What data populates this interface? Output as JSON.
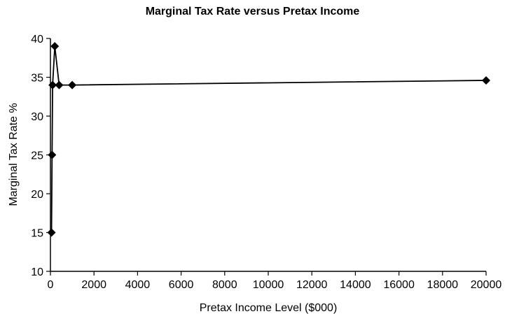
{
  "chart_data": {
    "type": "line",
    "title": "Marginal Tax Rate versus Pretax Income",
    "xlabel": "Pretax Income Level ($000)",
    "ylabel": "Marginal Tax Rate %",
    "xlim": [
      0,
      20000
    ],
    "ylim": [
      10,
      40
    ],
    "xticks": [
      0,
      2000,
      4000,
      6000,
      8000,
      10000,
      12000,
      14000,
      16000,
      18000,
      20000
    ],
    "yticks": [
      10,
      15,
      20,
      25,
      30,
      35,
      40
    ],
    "grid": false,
    "legend": "none",
    "marker": "diamond",
    "line_color": "#000000",
    "series": [
      {
        "x": [
          50,
          75,
          100,
          200,
          400,
          1000,
          20000
        ],
        "y": [
          15,
          25,
          34,
          39,
          34,
          34,
          34.6
        ]
      }
    ]
  }
}
